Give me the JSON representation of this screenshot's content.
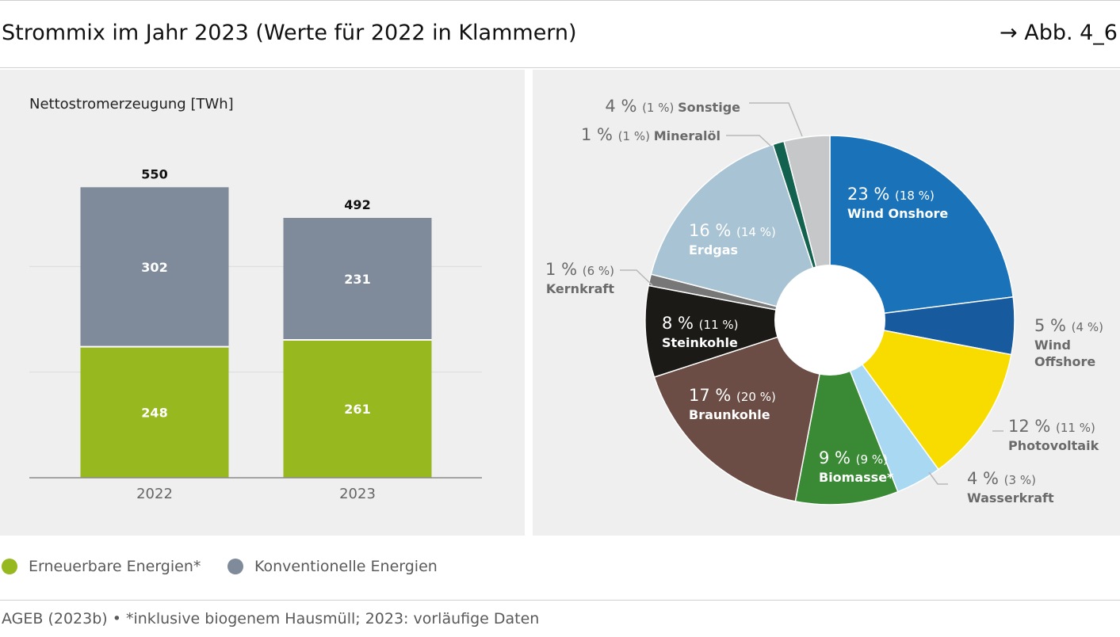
{
  "header": {
    "title": "Strommix im Jahr 2023 (Werte für 2022 in Klammern)",
    "figure_ref": "→ Abb. 4_6"
  },
  "legend": {
    "renewable": "Erneuerbare Energien*",
    "conventional": "Konventionelle Energien"
  },
  "colors": {
    "renewable": "#97b81e",
    "conventional": "#7f8b9b",
    "panel": "#efefef"
  },
  "footer": {
    "source": "AGEB (2023b) • *inklusive biogenem Hausmüll; 2023: vorläufige Daten"
  },
  "chart_data": [
    {
      "type": "bar",
      "stacked": true,
      "title": "Nettostromerzeugung [TWh]",
      "categories": [
        "2022",
        "2023"
      ],
      "series": [
        {
          "name": "Erneuerbare Energien*",
          "values": [
            248,
            261
          ],
          "color": "#97b81e"
        },
        {
          "name": "Konventionelle Energien",
          "values": [
            302,
            231
          ],
          "color": "#7f8b9b"
        }
      ],
      "totals": [
        550,
        492
      ],
      "ylim": [
        0,
        600
      ],
      "grid": true
    },
    {
      "type": "pie",
      "donut": true,
      "slices": [
        {
          "label": "Wind Onshore",
          "value": 23,
          "value_text": "23 %",
          "prev_text": "(18 %)",
          "color": "#1a73b9",
          "label_inside": true
        },
        {
          "label": "Wind Offshore",
          "value": 5,
          "value_text": "5 %",
          "prev_text": "(4 %)",
          "color": "#175a9e",
          "label_inside": false
        },
        {
          "label": "Photovoltaik",
          "value": 12,
          "value_text": "12 %",
          "prev_text": "(11 %)",
          "color": "#f8dc00",
          "label_inside": false
        },
        {
          "label": "Wasserkraft",
          "value": 4,
          "value_text": "4 %",
          "prev_text": "(3 %)",
          "color": "#a9d8f2",
          "label_inside": false
        },
        {
          "label": "Biomasse*",
          "value": 9,
          "value_text": "9 %",
          "prev_text": "(9 %)",
          "color": "#3a8a35",
          "label_inside": true
        },
        {
          "label": "Braunkohle",
          "value": 17,
          "value_text": "17 %",
          "prev_text": "(20 %)",
          "color": "#6b4d45",
          "label_inside": true
        },
        {
          "label": "Steinkohle",
          "value": 8,
          "value_text": "8 %",
          "prev_text": "(11 %)",
          "color": "#1c1a17",
          "label_inside": true
        },
        {
          "label": "Kernkraft",
          "value": 1,
          "value_text": "1 %",
          "prev_text": "(6 %)",
          "color": "#777777",
          "label_inside": false
        },
        {
          "label": "Erdgas",
          "value": 16,
          "value_text": "16 %",
          "prev_text": "(14 %)",
          "color": "#a8c3d3",
          "label_inside": true
        },
        {
          "label": "Mineralöl",
          "value": 1,
          "value_text": "1 %",
          "prev_text": "(1 %)",
          "color": "#13614f",
          "label_inside": false
        },
        {
          "label": "Sonstige",
          "value": 4,
          "value_text": "4 %",
          "prev_text": "(1 %)",
          "color": "#c6c7c8",
          "label_inside": false
        }
      ]
    }
  ]
}
